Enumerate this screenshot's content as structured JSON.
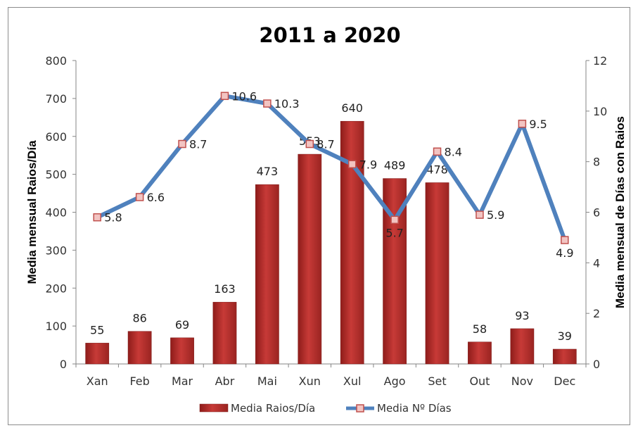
{
  "chart_data": {
    "type": "bar",
    "title": "2011 a 2020",
    "categories": [
      "Xan",
      "Feb",
      "Mar",
      "Abr",
      "Mai",
      "Xun",
      "Xul",
      "Ago",
      "Set",
      "Out",
      "Nov",
      "Dec"
    ],
    "ylabel": "Media mensual  Raios/Día",
    "y2label": "Media mensual de Días con Raios",
    "ylim": [
      0,
      800
    ],
    "y2lim": [
      0,
      12
    ],
    "yticks": [
      "0",
      "100",
      "200",
      "300",
      "400",
      "500",
      "600",
      "700",
      "800"
    ],
    "y2ticks": [
      "0",
      "2",
      "4",
      "6",
      "8",
      "10",
      "12"
    ],
    "grid": false,
    "legend_position": "bottom",
    "series": [
      {
        "name": "Media Raios/Día",
        "type": "bar",
        "axis": "left",
        "color": "#b5302e",
        "values": [
          55,
          86,
          69,
          163,
          473,
          553,
          640,
          489,
          478,
          58,
          93,
          39
        ],
        "labels": [
          "55",
          "86",
          "69",
          "163",
          "473",
          "553",
          "640",
          "489",
          "478",
          "58",
          "93",
          "39"
        ]
      },
      {
        "name": "Media Nº Días",
        "type": "line",
        "axis": "right",
        "color": "#4f81bd",
        "marker_color": "#c0504d",
        "values": [
          5.8,
          6.6,
          8.7,
          10.6,
          10.3,
          8.7,
          7.9,
          5.7,
          8.4,
          5.9,
          9.5,
          4.9
        ],
        "labels": [
          "5.8",
          "6.6",
          "8.7",
          "10.6",
          "10.3",
          "8.7",
          "7.9",
          "5.7",
          "8.4",
          "5.9",
          "9.5",
          "4.9"
        ]
      }
    ]
  }
}
